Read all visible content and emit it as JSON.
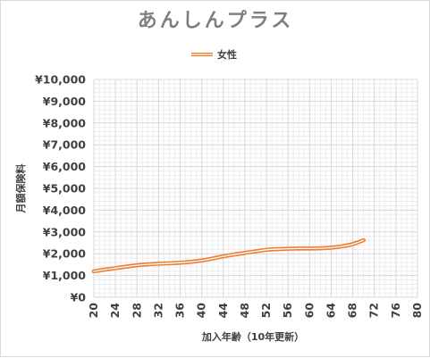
{
  "chart_data": {
    "type": "line",
    "title": "あんしんプラス",
    "xlabel": "加入年齢（10年更新）",
    "ylabel": "月額保険料",
    "xlim": [
      20,
      80
    ],
    "ylim": [
      0,
      10000
    ],
    "x_ticks": [
      20,
      24,
      28,
      32,
      36,
      40,
      44,
      48,
      52,
      56,
      60,
      64,
      68,
      72,
      76,
      80
    ],
    "y_ticks": [
      0,
      1000,
      2000,
      3000,
      4000,
      5000,
      6000,
      7000,
      8000,
      9000,
      10000
    ],
    "y_tick_labels": [
      "¥0",
      "¥1,000",
      "¥2,000",
      "¥3,000",
      "¥4,000",
      "¥5,000",
      "¥6,000",
      "¥7,000",
      "¥8,000",
      "¥9,000",
      "¥10,000"
    ],
    "grid": true,
    "legend_position": "top-center",
    "series": [
      {
        "name": "女性",
        "color": "#ed7d31",
        "x": [
          20,
          22,
          24,
          26,
          28,
          30,
          32,
          34,
          36,
          38,
          40,
          42,
          44,
          46,
          48,
          50,
          52,
          54,
          56,
          58,
          60,
          62,
          64,
          66,
          68,
          70
        ],
        "y": [
          1190,
          1270,
          1340,
          1410,
          1470,
          1510,
          1540,
          1560,
          1590,
          1630,
          1690,
          1780,
          1880,
          1960,
          2040,
          2110,
          2180,
          2210,
          2230,
          2240,
          2240,
          2250,
          2280,
          2340,
          2440,
          2620
        ]
      }
    ]
  }
}
